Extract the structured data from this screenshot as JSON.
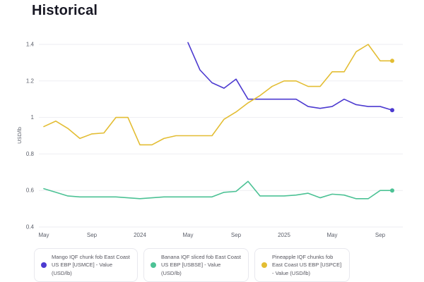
{
  "page": {
    "title": "Historical"
  },
  "y_axis": {
    "label": "USD/lb",
    "ticks": [
      "1.4",
      "1.2",
      "1",
      "0.8",
      "0.6",
      "0.4"
    ]
  },
  "x_axis": {
    "tick_labels": [
      {
        "label": "May",
        "month": 0
      },
      {
        "label": "Sep",
        "month": 4
      },
      {
        "label": "2024",
        "month": 8
      },
      {
        "label": "May",
        "month": 12
      },
      {
        "label": "Sep",
        "month": 16
      },
      {
        "label": "2025",
        "month": 20
      },
      {
        "label": "May",
        "month": 24
      },
      {
        "label": "Sep",
        "month": 28
      }
    ]
  },
  "legend": {
    "items": [
      {
        "id": "mango-series",
        "label": "Mango IQF chunk fob East Coast US EBP [USMCE] - Value (USD/lb)",
        "color": "#4c3ad0"
      },
      {
        "id": "banana-series",
        "label": "Banana IQF sliced fob East Coast US EBP [USBSE] - Value (USD/lb)",
        "color": "#4cc295"
      },
      {
        "id": "pineapple-series",
        "label": "Pineapple IQF chunks fob East Coast US EBP [USPCE] - Value (USD/lb)",
        "color": "#e3bd33"
      }
    ]
  },
  "chart_data": {
    "type": "line",
    "title": "Historical",
    "xlabel": "",
    "ylabel": "USD/lb",
    "ylim": [
      0.4,
      1.4
    ],
    "grid": "horizontal",
    "legend_position": "bottom",
    "x": [
      "2023-05",
      "2023-06",
      "2023-07",
      "2023-08",
      "2023-09",
      "2023-10",
      "2023-11",
      "2023-12",
      "2024-01",
      "2024-02",
      "2024-03",
      "2024-04",
      "2024-05",
      "2024-06",
      "2024-07",
      "2024-08",
      "2024-09",
      "2024-10",
      "2024-11",
      "2024-12",
      "2025-01",
      "2025-02",
      "2025-03",
      "2025-04",
      "2025-05",
      "2025-06",
      "2025-07",
      "2025-08",
      "2025-09",
      "2025-10"
    ],
    "series": [
      {
        "id": "mango-series",
        "name": "Mango IQF chunk fob East Coast US EBP [USMCE] - Value (USD/lb)",
        "color": "#4c3ad0",
        "values": [
          null,
          null,
          null,
          null,
          null,
          null,
          null,
          null,
          null,
          null,
          null,
          null,
          1.41,
          1.26,
          1.19,
          1.16,
          1.21,
          1.1,
          1.1,
          1.1,
          1.1,
          1.1,
          1.06,
          1.05,
          1.06,
          1.1,
          1.07,
          1.06,
          1.06,
          1.04
        ]
      },
      {
        "id": "banana-series",
        "name": "Banana IQF sliced fob East Coast US EBP [USBSE] - Value (USD/lb)",
        "color": "#4cc295",
        "values": [
          0.61,
          0.59,
          0.57,
          0.565,
          0.565,
          0.565,
          0.565,
          0.56,
          0.555,
          0.56,
          0.565,
          0.565,
          0.565,
          0.565,
          0.565,
          0.59,
          0.595,
          0.65,
          0.57,
          0.57,
          0.57,
          0.575,
          0.585,
          0.56,
          0.58,
          0.575,
          0.555,
          0.555,
          0.6,
          0.6
        ]
      },
      {
        "id": "pineapple-series",
        "name": "Pineapple IQF chunks fob East Coast US EBP [USPCE] - Value (USD/lb)",
        "color": "#e3bd33",
        "values": [
          0.95,
          0.98,
          0.94,
          0.885,
          0.91,
          0.915,
          1.0,
          1.0,
          0.85,
          0.85,
          0.885,
          0.9,
          0.9,
          0.9,
          0.9,
          0.99,
          1.03,
          1.08,
          1.12,
          1.17,
          1.2,
          1.2,
          1.17,
          1.17,
          1.25,
          1.25,
          1.36,
          1.4,
          1.31,
          1.31
        ]
      }
    ]
  }
}
